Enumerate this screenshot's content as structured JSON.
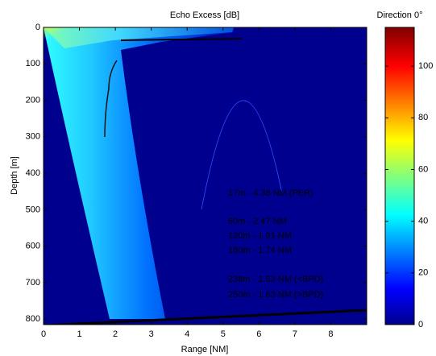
{
  "chart_data": {
    "type": "heatmap",
    "title": "Echo Excess [dB]",
    "xlabel": "Range [NM]",
    "ylabel": "Depth [m]",
    "xlim": [
      0,
      9
    ],
    "xticks": [
      0,
      1,
      2,
      3,
      4,
      5,
      6,
      7,
      8
    ],
    "ylim": [
      0,
      815
    ],
    "yticks": [
      0,
      100,
      200,
      300,
      400,
      500,
      600,
      700,
      800
    ],
    "y_reversed": true,
    "colormap": "jet",
    "colorbar": {
      "title": "Direction 0°",
      "lim": [
        0,
        115
      ],
      "ticks": [
        0,
        20,
        40,
        60,
        80,
        100
      ]
    },
    "annotations": [
      "17m - 4.38 NM (PER)",
      "60m - 2.47 NM",
      "120m - 1.91 NM",
      "180m - 1.74 NM",
      "238m - 1.63 NM (<BPD)",
      "250m - 1.63 NM (>BPD)"
    ]
  }
}
